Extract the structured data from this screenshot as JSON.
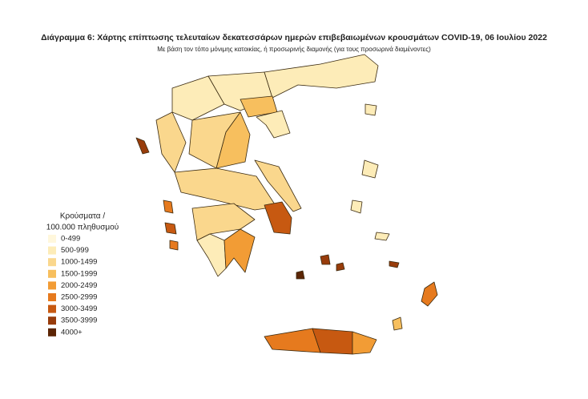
{
  "title": "Διάγραμμα 6: Χάρτης επίπτωσης τελευταίων δεκατεσσάρων ημερών επιβεβαιωμένων κρουσμάτων COVID-19, 06 Ιουλίου 2022",
  "subtitle": "Με βάση τον τόπο μόνιμης κατοικίας, ή προσωρινής διαμονής (για τους προσωρινά διαμένοντες)",
  "legend": {
    "title": [
      "Κρούσματα /",
      "100.000 πληθυσμού"
    ],
    "items": [
      {
        "label": "0-499",
        "color": "#fff7dc"
      },
      {
        "label": "500-999",
        "color": "#fdecb8"
      },
      {
        "label": "1000-1499",
        "color": "#fad78d"
      },
      {
        "label": "1500-1999",
        "color": "#f7bf5e"
      },
      {
        "label": "2000-2499",
        "color": "#f29c35"
      },
      {
        "label": "2500-2999",
        "color": "#e67a1e"
      },
      {
        "label": "3000-3499",
        "color": "#c75911"
      },
      {
        "label": "3500-3999",
        "color": "#983c0b"
      },
      {
        "label": "4000+",
        "color": "#5c2505"
      }
    ]
  }
}
